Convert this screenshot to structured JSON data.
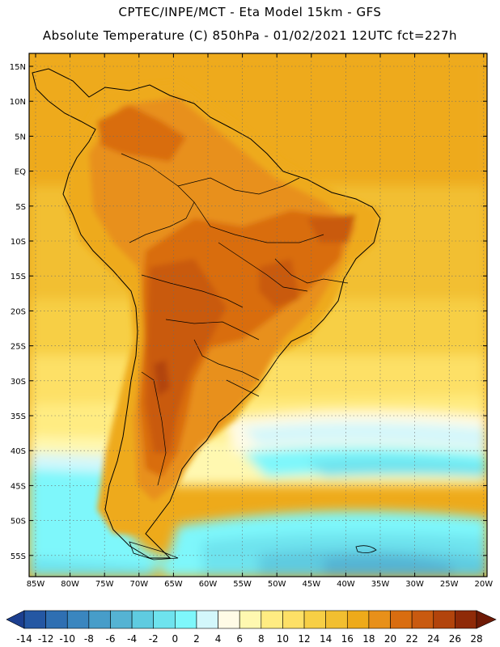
{
  "header": {
    "line1": "CPTEC/INPE/MCT -  Eta Model 15km - GFS",
    "line2": "Absolute Temperature (C) 850hPa - 01/02/2021 12UTC fct=227h"
  },
  "axes": {
    "lat_labels": [
      "15N",
      "10N",
      "5N",
      "EQ",
      "5S",
      "10S",
      "15S",
      "20S",
      "25S",
      "30S",
      "35S",
      "40S",
      "45S",
      "50S",
      "55S"
    ],
    "lon_labels": [
      "85W",
      "80W",
      "75W",
      "70W",
      "65W",
      "60W",
      "55W",
      "50W",
      "45W",
      "40W",
      "35W",
      "30W",
      "25W",
      "20W"
    ]
  },
  "colorbar": {
    "labels": [
      "-14",
      "-12",
      "-10",
      "-8",
      "-6",
      "-4",
      "-2",
      "0",
      "2",
      "4",
      "6",
      "8",
      "10",
      "12",
      "14",
      "16",
      "18",
      "20",
      "22",
      "24",
      "26",
      "28"
    ],
    "colors": [
      "#1c3f8f",
      "#2457a3",
      "#2f6fb2",
      "#3a86bf",
      "#479dc9",
      "#55b3d3",
      "#5fcbe0",
      "#6ee3ee",
      "#7ef7fb",
      "#d3f7fb",
      "#fffbe6",
      "#fff8b0",
      "#ffec82",
      "#fde066",
      "#f7cf45",
      "#f2bf30",
      "#eeaa1a",
      "#e8901a",
      "#d96d10",
      "#c95a10",
      "#b2440c",
      "#8f2a08",
      "#6e1a06"
    ]
  }
}
